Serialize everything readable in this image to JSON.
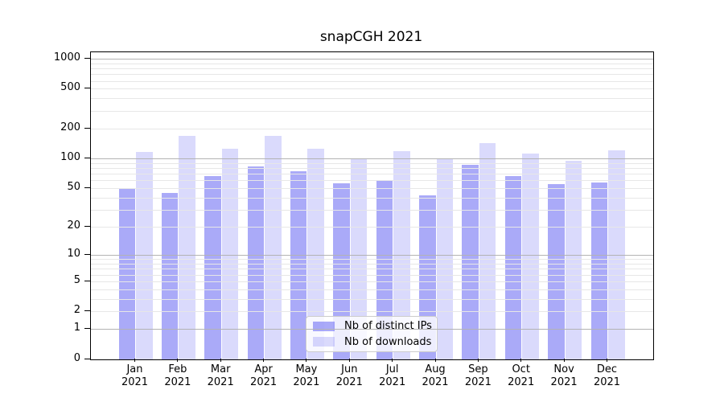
{
  "chart_data": {
    "type": "bar",
    "title": "snapCGH 2021",
    "categories": [
      "Jan",
      "Feb",
      "Mar",
      "Apr",
      "May",
      "Jun",
      "Jul",
      "Aug",
      "Sep",
      "Oct",
      "Nov",
      "Dec"
    ],
    "year": "2021",
    "series": [
      {
        "name": "Nb of distinct IPs",
        "color": "rgba(85,85,242,0.5)",
        "values": [
          50,
          45,
          66,
          83,
          74,
          56,
          61,
          42,
          87,
          66,
          55,
          57
        ]
      },
      {
        "name": "Nb of downloads",
        "color": "rgba(85,85,242,0.22)",
        "values": [
          117,
          168,
          125,
          168,
          126,
          99,
          118,
          99,
          143,
          112,
          95,
          120
        ]
      }
    ],
    "yscale": "log1p",
    "yticks": [
      1000,
      500,
      200,
      100,
      50,
      20,
      10,
      5,
      2,
      1,
      0
    ],
    "ylim": [
      0,
      1200
    ],
    "grid": "on",
    "legend_position": "lower center",
    "colors": {
      "bar_dark_on_white": "#aaaaf9",
      "bar_light_on_white": "#d9d9fa",
      "grid_major": "#b3b3b3",
      "grid_minor": "#e7e7e7",
      "axis": "#000000"
    }
  }
}
